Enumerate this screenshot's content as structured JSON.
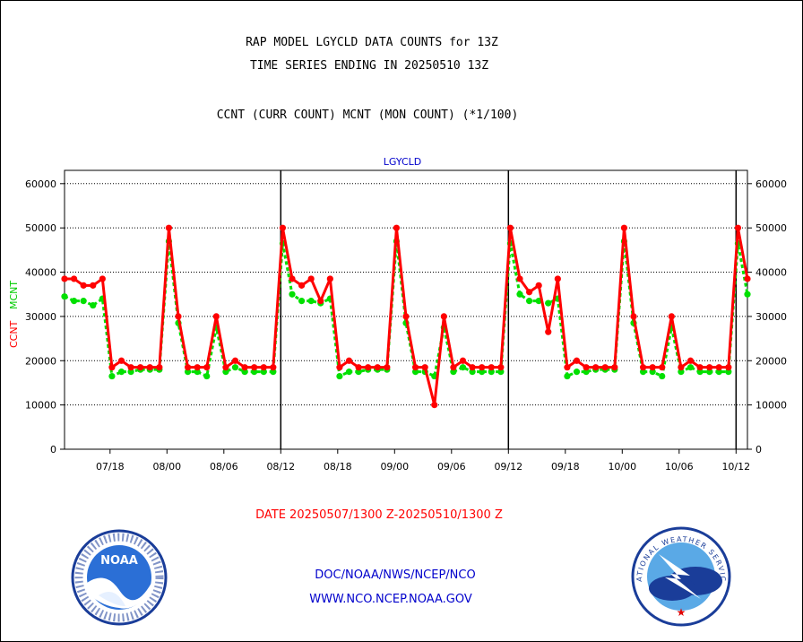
{
  "header": {
    "title": "RAP MODEL LGYCLD DATA COUNTS for 13Z",
    "subtitle": "TIME SERIES ENDING IN 20250510 13Z",
    "description": "CCNT (CURR COUNT) MCNT (MON COUNT) (*1/100)"
  },
  "footer": {
    "date_range": "DATE 20250507/1300 Z-20250510/1300 Z",
    "org_line": "DOC/NOAA/NWS/NCEP/NCO",
    "url": "WWW.NCO.NCEP.NOAA.GOV"
  },
  "logos": {
    "left": {
      "label": "NOAA"
    },
    "right": {
      "arc_text": "NATIONAL WEATHER SERVICE"
    }
  },
  "colors": {
    "ccnt": "#ff0000",
    "mcnt": "#00e000",
    "title": "#000000",
    "panel_label": "#0000cc",
    "date": "#ff0000",
    "footer": "#0000cc"
  },
  "chart_data": {
    "type": "line",
    "panel_label": "LGYCLD",
    "ylabel_red": "CCNT",
    "ylabel_green": "MCNT",
    "ylim": [
      0,
      63000
    ],
    "y_ticks": [
      0,
      10000,
      20000,
      30000,
      40000,
      50000,
      60000
    ],
    "y_tick_labels": [
      "0",
      "10000",
      "20000",
      "30000",
      "40000",
      "50000",
      "60000"
    ],
    "xlim": [
      0,
      60
    ],
    "x_ticks": [
      {
        "x": 4,
        "label": "07/18"
      },
      {
        "x": 9,
        "label": "08/00"
      },
      {
        "x": 14,
        "label": "08/06"
      },
      {
        "x": 19,
        "label": "08/12"
      },
      {
        "x": 24,
        "label": "08/18"
      },
      {
        "x": 29,
        "label": "09/00"
      },
      {
        "x": 34,
        "label": "09/06"
      },
      {
        "x": 39,
        "label": "09/12"
      },
      {
        "x": 44,
        "label": "09/18"
      },
      {
        "x": 49,
        "label": "10/00"
      },
      {
        "x": 54,
        "label": "10/06"
      },
      {
        "x": 59,
        "label": "10/12"
      }
    ],
    "day_boundaries": [
      19,
      39,
      59
    ],
    "grid": true,
    "series": [
      {
        "name": "CCNT",
        "color": "#ff0000",
        "values": [
          38500,
          38500,
          37000,
          37000,
          38500,
          18500,
          20000,
          18500,
          18500,
          18500,
          18500,
          50000,
          30000,
          18500,
          18500,
          18500,
          30000,
          18500,
          20000,
          18500,
          18500,
          18500,
          18500,
          50000,
          38500,
          37000,
          38500,
          33500,
          38500,
          18500,
          20000,
          18500,
          18500,
          18500,
          18500,
          50000,
          30000,
          18500,
          18500,
          10000,
          30000,
          18500,
          20000,
          18500,
          18500,
          18500,
          18500,
          50000,
          38500,
          35500,
          37000,
          26500,
          38500,
          18500,
          20000,
          18500,
          18500,
          18500,
          18500,
          50000,
          30000,
          18500,
          18500,
          18500,
          30000,
          18500,
          20000,
          18500,
          18500,
          18500,
          18500,
          50000,
          38500
        ]
      },
      {
        "name": "MCNT",
        "color": "#00e000",
        "values": [
          34500,
          33500,
          33500,
          32500,
          34000,
          16500,
          17500,
          17500,
          18000,
          18000,
          18000,
          47000,
          28500,
          17500,
          17500,
          16500,
          27500,
          17500,
          18500,
          17500,
          17500,
          17500,
          17500,
          46500,
          35000,
          33500,
          33500,
          33000,
          34000,
          16500,
          17500,
          17500,
          18000,
          18000,
          18000,
          47000,
          28500,
          17500,
          17500,
          16500,
          27500,
          17500,
          18500,
          17500,
          17500,
          17500,
          17500,
          46500,
          35000,
          33500,
          33500,
          33000,
          34000,
          16500,
          17500,
          17500,
          18000,
          18000,
          18000,
          47000,
          28500,
          17500,
          17500,
          16500,
          27500,
          17500,
          18500,
          17500,
          17500,
          17500,
          17500,
          46500,
          35000
        ]
      }
    ]
  }
}
